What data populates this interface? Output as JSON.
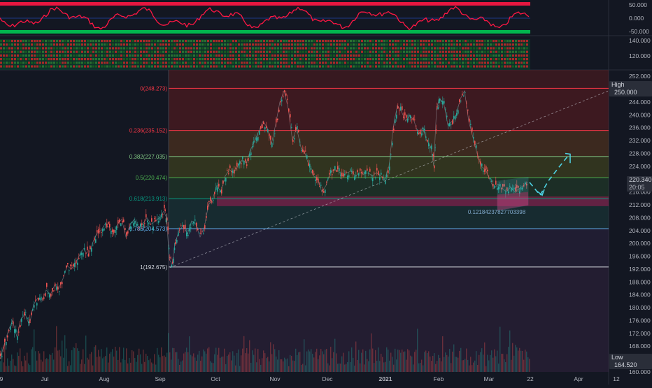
{
  "chart_data": {
    "type": "line",
    "title": "",
    "xlabel": "",
    "ylabel": "",
    "ylim": [
      160,
      254
    ],
    "x_ticks": [
      "9",
      "Jul",
      "Aug",
      "Sep",
      "Oct",
      "Nov",
      "Dec",
      "2021",
      "Feb",
      "Mar",
      "22",
      "Apr",
      "12"
    ],
    "y_ticks": [
      "252.000",
      "248.000",
      "244.000",
      "240.000",
      "236.000",
      "232.000",
      "228.000",
      "224.000",
      "220.000",
      "216.000",
      "212.000",
      "208.000",
      "204.000",
      "200.000",
      "196.000",
      "192.000",
      "188.000",
      "184.000",
      "180.000",
      "176.000",
      "172.000",
      "168.000",
      "164.000",
      "160.000"
    ],
    "fib_levels": [
      {
        "label": "0(248.273)",
        "value": 248.273,
        "color": "#f23645"
      },
      {
        "label": "0.236(235.152)",
        "value": 235.152,
        "color": "#f23645"
      },
      {
        "label": "0.382(227.035)",
        "value": 227.035,
        "color": "#81c784"
      },
      {
        "label": "0.5(220.474)",
        "value": 220.474,
        "color": "#4caf50"
      },
      {
        "label": "0.618(213.913)",
        "value": 213.913,
        "color": "#089981"
      },
      {
        "label": "0.786(204.573)",
        "value": 204.573,
        "color": "#64b5f6"
      },
      {
        "label": "1(192.675)",
        "value": 192.675,
        "color": "#d1d4dc"
      }
    ],
    "annotation_ratio": "0.12184237827703398",
    "high_label": "High",
    "high_value": "250.000",
    "low_label": "Low",
    "low_value": "164.520",
    "last_price": "220.340",
    "countdown": "20:05",
    "series": [
      {
        "values": [
          [
            0,
            164.0
          ],
          [
            6,
            168.5
          ],
          [
            12,
            173
          ],
          [
            18,
            176
          ],
          [
            24,
            171
          ],
          [
            30,
            176.5
          ],
          [
            36,
            178
          ],
          [
            42,
            174.5
          ],
          [
            48,
            181
          ],
          [
            54,
            183
          ],
          [
            60,
            182
          ],
          [
            66,
            185.5
          ],
          [
            72,
            184
          ],
          [
            78,
            187
          ],
          [
            84,
            186
          ],
          [
            90,
            189
          ],
          [
            96,
            193
          ],
          [
            102,
            192
          ],
          [
            108,
            194
          ],
          [
            114,
            196.5
          ],
          [
            120,
            198.5
          ],
          [
            126,
            196
          ],
          [
            132,
            200
          ],
          [
            138,
            203
          ],
          [
            144,
            204
          ],
          [
            150,
            206
          ],
          [
            156,
            205
          ],
          [
            162,
            203
          ],
          [
            168,
            206
          ],
          [
            174,
            207.5
          ],
          [
            180,
            202
          ],
          [
            186,
            206
          ],
          [
            192,
            207.5
          ],
          [
            198,
            205
          ],
          [
            204,
            206
          ],
          [
            210,
            208
          ],
          [
            216,
            206
          ],
          [
            222,
            207
          ],
          [
            228,
            208
          ],
          [
            234,
            210
          ],
          [
            238,
            208
          ],
          [
            242,
            195
          ],
          [
            246,
            193.5
          ],
          [
            250,
            200
          ],
          [
            256,
            204
          ],
          [
            262,
            205.5
          ],
          [
            268,
            203
          ],
          [
            274,
            207
          ],
          [
            280,
            206
          ],
          [
            286,
            202
          ],
          [
            292,
            205
          ],
          [
            298,
            212
          ],
          [
            304,
            214
          ],
          [
            310,
            218
          ],
          [
            316,
            216
          ],
          [
            322,
            221
          ],
          [
            328,
            223
          ],
          [
            334,
            222
          ],
          [
            340,
            224
          ],
          [
            346,
            226
          ],
          [
            352,
            225
          ],
          [
            358,
            229
          ],
          [
            364,
            232
          ],
          [
            370,
            235
          ],
          [
            376,
            238
          ],
          [
            382,
            236
          ],
          [
            388,
            231
          ],
          [
            394,
            237
          ],
          [
            400,
            244
          ],
          [
            406,
            247.5
          ],
          [
            412,
            242
          ],
          [
            418,
            232
          ],
          [
            424,
            236
          ],
          [
            430,
            230
          ],
          [
            436,
            228
          ],
          [
            442,
            224
          ],
          [
            448,
            221
          ],
          [
            454,
            220
          ],
          [
            460,
            216
          ],
          [
            466,
            218
          ],
          [
            472,
            222
          ],
          [
            478,
            223
          ],
          [
            484,
            222.5
          ],
          [
            490,
            221
          ],
          [
            496,
            222
          ],
          [
            502,
            222.5
          ],
          [
            508,
            221
          ],
          [
            514,
            222
          ],
          [
            520,
            221.5
          ],
          [
            526,
            222
          ],
          [
            532,
            221
          ],
          [
            538,
            222
          ],
          [
            544,
            221
          ],
          [
            550,
            220
          ],
          [
            556,
            224
          ],
          [
            562,
            236
          ],
          [
            568,
            243
          ],
          [
            574,
            241
          ],
          [
            580,
            238
          ],
          [
            586,
            240
          ],
          [
            592,
            238
          ],
          [
            598,
            234
          ],
          [
            604,
            236
          ],
          [
            610,
            232
          ],
          [
            616,
            230
          ],
          [
            620,
            224
          ],
          [
            624,
            242
          ],
          [
            628,
            245
          ],
          [
            634,
            244
          ],
          [
            640,
            237
          ],
          [
            646,
            238
          ],
          [
            652,
            240
          ],
          [
            658,
            245
          ],
          [
            664,
            247.5
          ],
          [
            670,
            238
          ],
          [
            676,
            233
          ],
          [
            682,
            228
          ],
          [
            688,
            224
          ],
          [
            694,
            223
          ],
          [
            700,
            220
          ],
          [
            706,
            217
          ],
          [
            712,
            218.5
          ],
          [
            718,
            217
          ],
          [
            724,
            216
          ],
          [
            730,
            217.5
          ],
          [
            736,
            216
          ],
          [
            742,
            217
          ],
          [
            748,
            218
          ],
          [
            754,
            219
          ]
        ]
      }
    ],
    "volume_bars": true,
    "rsi_oscillator": {
      "labels": [
        "50.000",
        "0.000",
        "-50.000"
      ]
    },
    "second_indicator": {
      "labels": [
        "140.000",
        "120.000"
      ]
    }
  }
}
